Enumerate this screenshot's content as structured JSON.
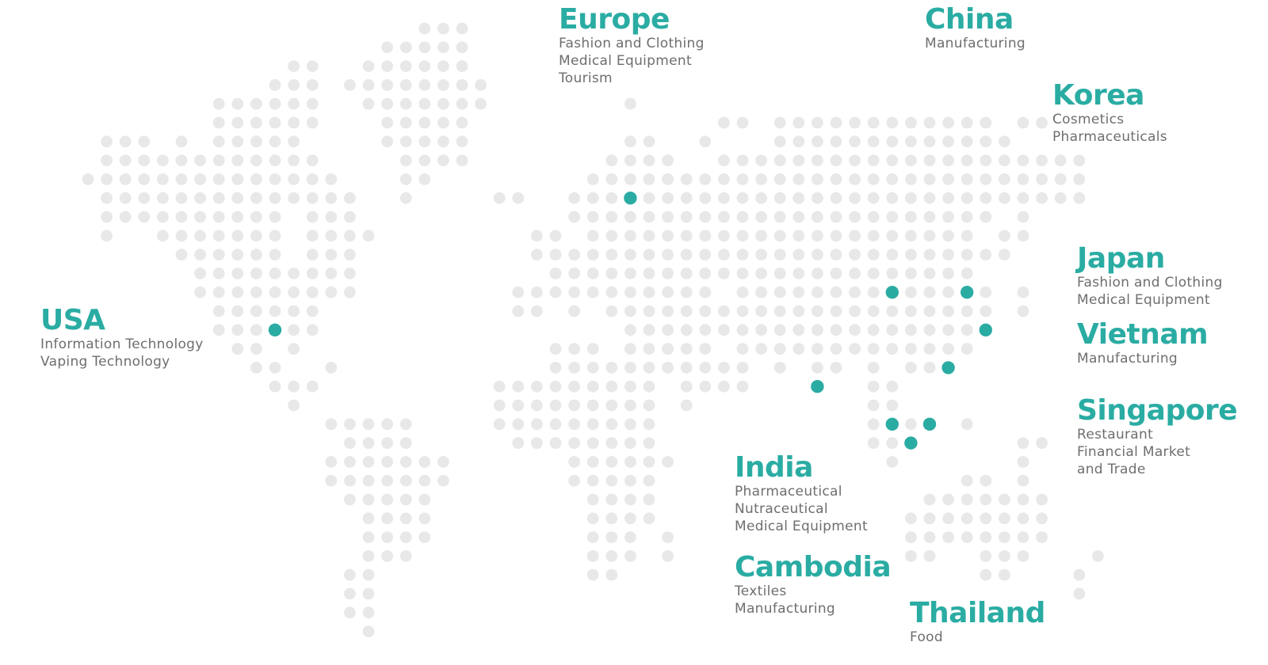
{
  "colors": {
    "accent": "#2aaca3",
    "dot": "#e8e8e8",
    "text": "#6e6e6e"
  },
  "regions": [
    {
      "id": "europe",
      "name": "Europe",
      "lines": [
        "Fashion and Clothing",
        "Medical Equipment",
        "Tourism"
      ]
    },
    {
      "id": "china",
      "name": "China",
      "lines": [
        "Manufacturing"
      ]
    },
    {
      "id": "korea",
      "name": "Korea",
      "lines": [
        "Cosmetics",
        "Pharmaceuticals"
      ]
    },
    {
      "id": "japan",
      "name": "Japan",
      "lines": [
        "Fashion and Clothing",
        "Medical Equipment"
      ]
    },
    {
      "id": "vietnam",
      "name": "Vietnam",
      "lines": [
        "Manufacturing"
      ]
    },
    {
      "id": "singapore",
      "name": "Singapore",
      "lines": [
        "Restaurant",
        "Financial Market",
        "and Trade"
      ]
    },
    {
      "id": "usa",
      "name": "USA",
      "lines": [
        "Information Technology",
        "Vaping Technology"
      ]
    },
    {
      "id": "india",
      "name": "India",
      "lines": [
        "Pharmaceutical",
        "Nutraceutical",
        "Medical Equipment"
      ]
    },
    {
      "id": "cambodia",
      "name": "Cambodia",
      "lines": [
        "Textiles",
        "Manufacturing"
      ]
    },
    {
      "id": "thailand",
      "name": "Thailand",
      "lines": [
        "Food"
      ]
    }
  ]
}
